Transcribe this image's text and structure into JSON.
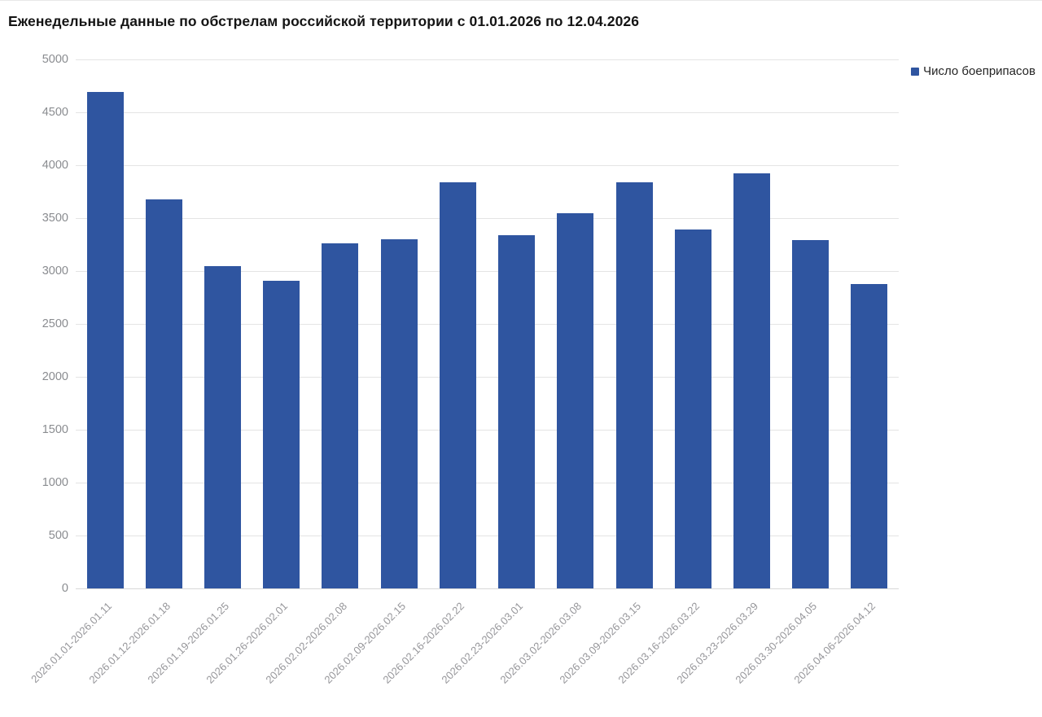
{
  "title": "Еженедельные данные по обстрелам российской территории с 01.01.2026 по 12.04.2026",
  "legend": {
    "label": "Число боеприпасов"
  },
  "colors": {
    "bar": "#2f55a0",
    "grid": "#e4e4e4",
    "axis_line": "#d8d8d8",
    "y_axis_text": "#8a8c90",
    "x_axis_text": "#96969a",
    "title_text": "#141414",
    "legend_text": "#242424",
    "top_border": "#e8e8e8",
    "background": "#ffffff"
  },
  "chart_data": {
    "type": "bar",
    "title": "Еженедельные данные по обстрелам российской территории с 01.01.2026 по 12.04.2026",
    "categories": [
      "2026.01.01-2026.01.11",
      "2026.01.12-2026.01.18",
      "2026.01.19-2026.01.25",
      "2026.01.26-2026.02.01",
      "2026.02.02-2026.02.08",
      "2026.02.09-2026.02.15",
      "2026.02.16-2026.02.22",
      "2026.02.23-2026.03.01",
      "2026.03.02-2026.03.08",
      "2026.03.09-2026.03.15",
      "2026.03.16-2026.03.22",
      "2026.03.23-2026.03.29",
      "2026.03.30-2026.04.05",
      "2026.04.06-2026.04.12"
    ],
    "series": [
      {
        "name": "Число боеприпасов",
        "values": [
          4690,
          3680,
          3050,
          2910,
          3260,
          3300,
          3840,
          3340,
          3550,
          3840,
          3390,
          3920,
          3290,
          2880
        ]
      }
    ],
    "xlabel": "",
    "ylabel": "",
    "ylim": [
      0,
      5000
    ],
    "yticks": [
      0,
      500,
      1000,
      1500,
      2000,
      2500,
      3000,
      3500,
      4000,
      4500,
      5000
    ],
    "grid": true,
    "legend_position": "top-right",
    "x_label_rotation": -45
  }
}
